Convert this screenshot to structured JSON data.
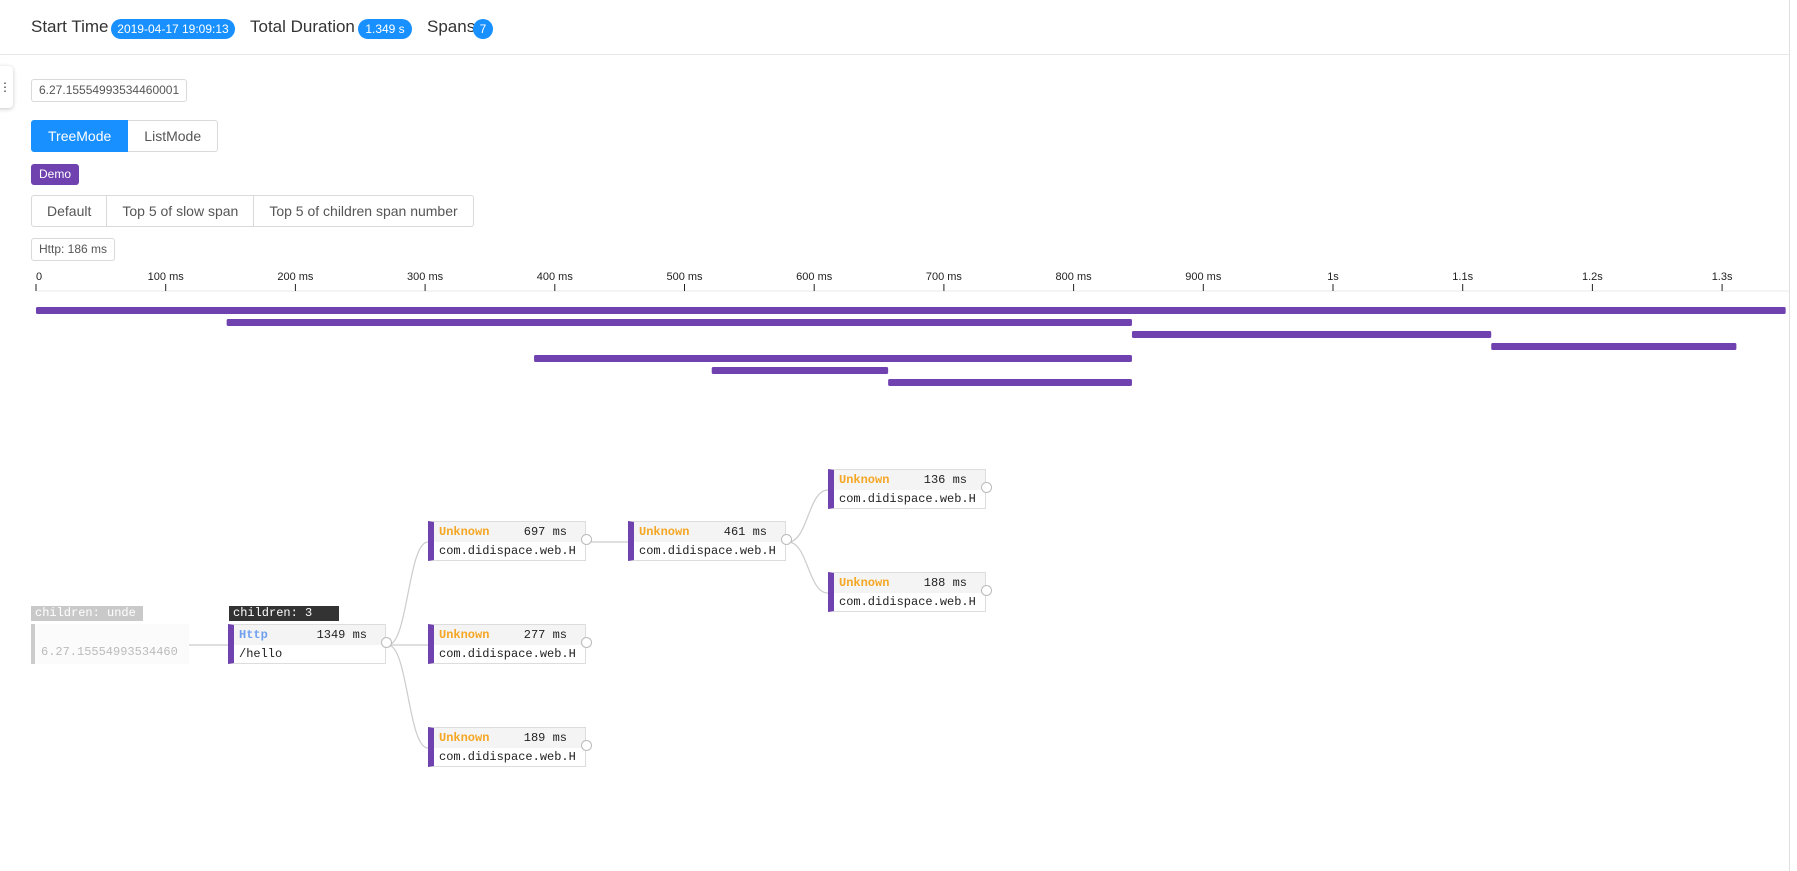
{
  "header": {
    "start_time_label": "Start Time",
    "start_time_value": "2019-04-17 19:09:13",
    "duration_label": "Total Duration",
    "duration_value": "1.349 s",
    "spans_label": "Spans",
    "spans_value": "7"
  },
  "trace_id": "6.27.15554993534460001",
  "modes": {
    "tree": "TreeMode",
    "list": "ListMode"
  },
  "demo_tag": "Demo",
  "filters": {
    "default": "Default",
    "slow": "Top 5 of slow span",
    "children": "Top 5 of children span number"
  },
  "http_tag": "Http: 186 ms",
  "timeline": {
    "color": "#6f42b0",
    "ticks": [
      "0",
      "100 ms",
      "200 ms",
      "300 ms",
      "400 ms",
      "500 ms",
      "600 ms",
      "700 ms",
      "800 ms",
      "900 ms",
      "1s",
      "1.1s",
      "1.2s",
      "1.3s"
    ],
    "tick_values_ms": [
      0,
      100,
      200,
      300,
      400,
      500,
      600,
      700,
      800,
      900,
      1000,
      1100,
      1200,
      1300
    ],
    "total_ms": 1349,
    "spans": [
      {
        "start_ms": 0,
        "end_ms": 1349
      },
      {
        "start_ms": 147,
        "end_ms": 845
      },
      {
        "start_ms": 845,
        "end_ms": 1122
      },
      {
        "start_ms": 1122,
        "end_ms": 1311
      },
      {
        "start_ms": 384,
        "end_ms": 845
      },
      {
        "start_ms": 521,
        "end_ms": 657
      },
      {
        "start_ms": 657,
        "end_ms": 845
      }
    ]
  },
  "tree": {
    "root": {
      "children_label": "children: unde",
      "name": "6.27.15554993534460"
    },
    "http": {
      "children_label": "children: 3",
      "type": "Http",
      "duration": "1349 ms",
      "name": "/hello"
    },
    "nodes": [
      {
        "type": "Unknown",
        "duration": "697 ms",
        "name": "com.didispace.web.H"
      },
      {
        "type": "Unknown",
        "duration": "277 ms",
        "name": "com.didispace.web.H"
      },
      {
        "type": "Unknown",
        "duration": "189 ms",
        "name": "com.didispace.web.H"
      },
      {
        "type": "Unknown",
        "duration": "461 ms",
        "name": "com.didispace.web.H"
      },
      {
        "type": "Unknown",
        "duration": "136 ms",
        "name": "com.didispace.web.H"
      },
      {
        "type": "Unknown",
        "duration": "188 ms",
        "name": "com.didispace.web.H"
      }
    ]
  }
}
